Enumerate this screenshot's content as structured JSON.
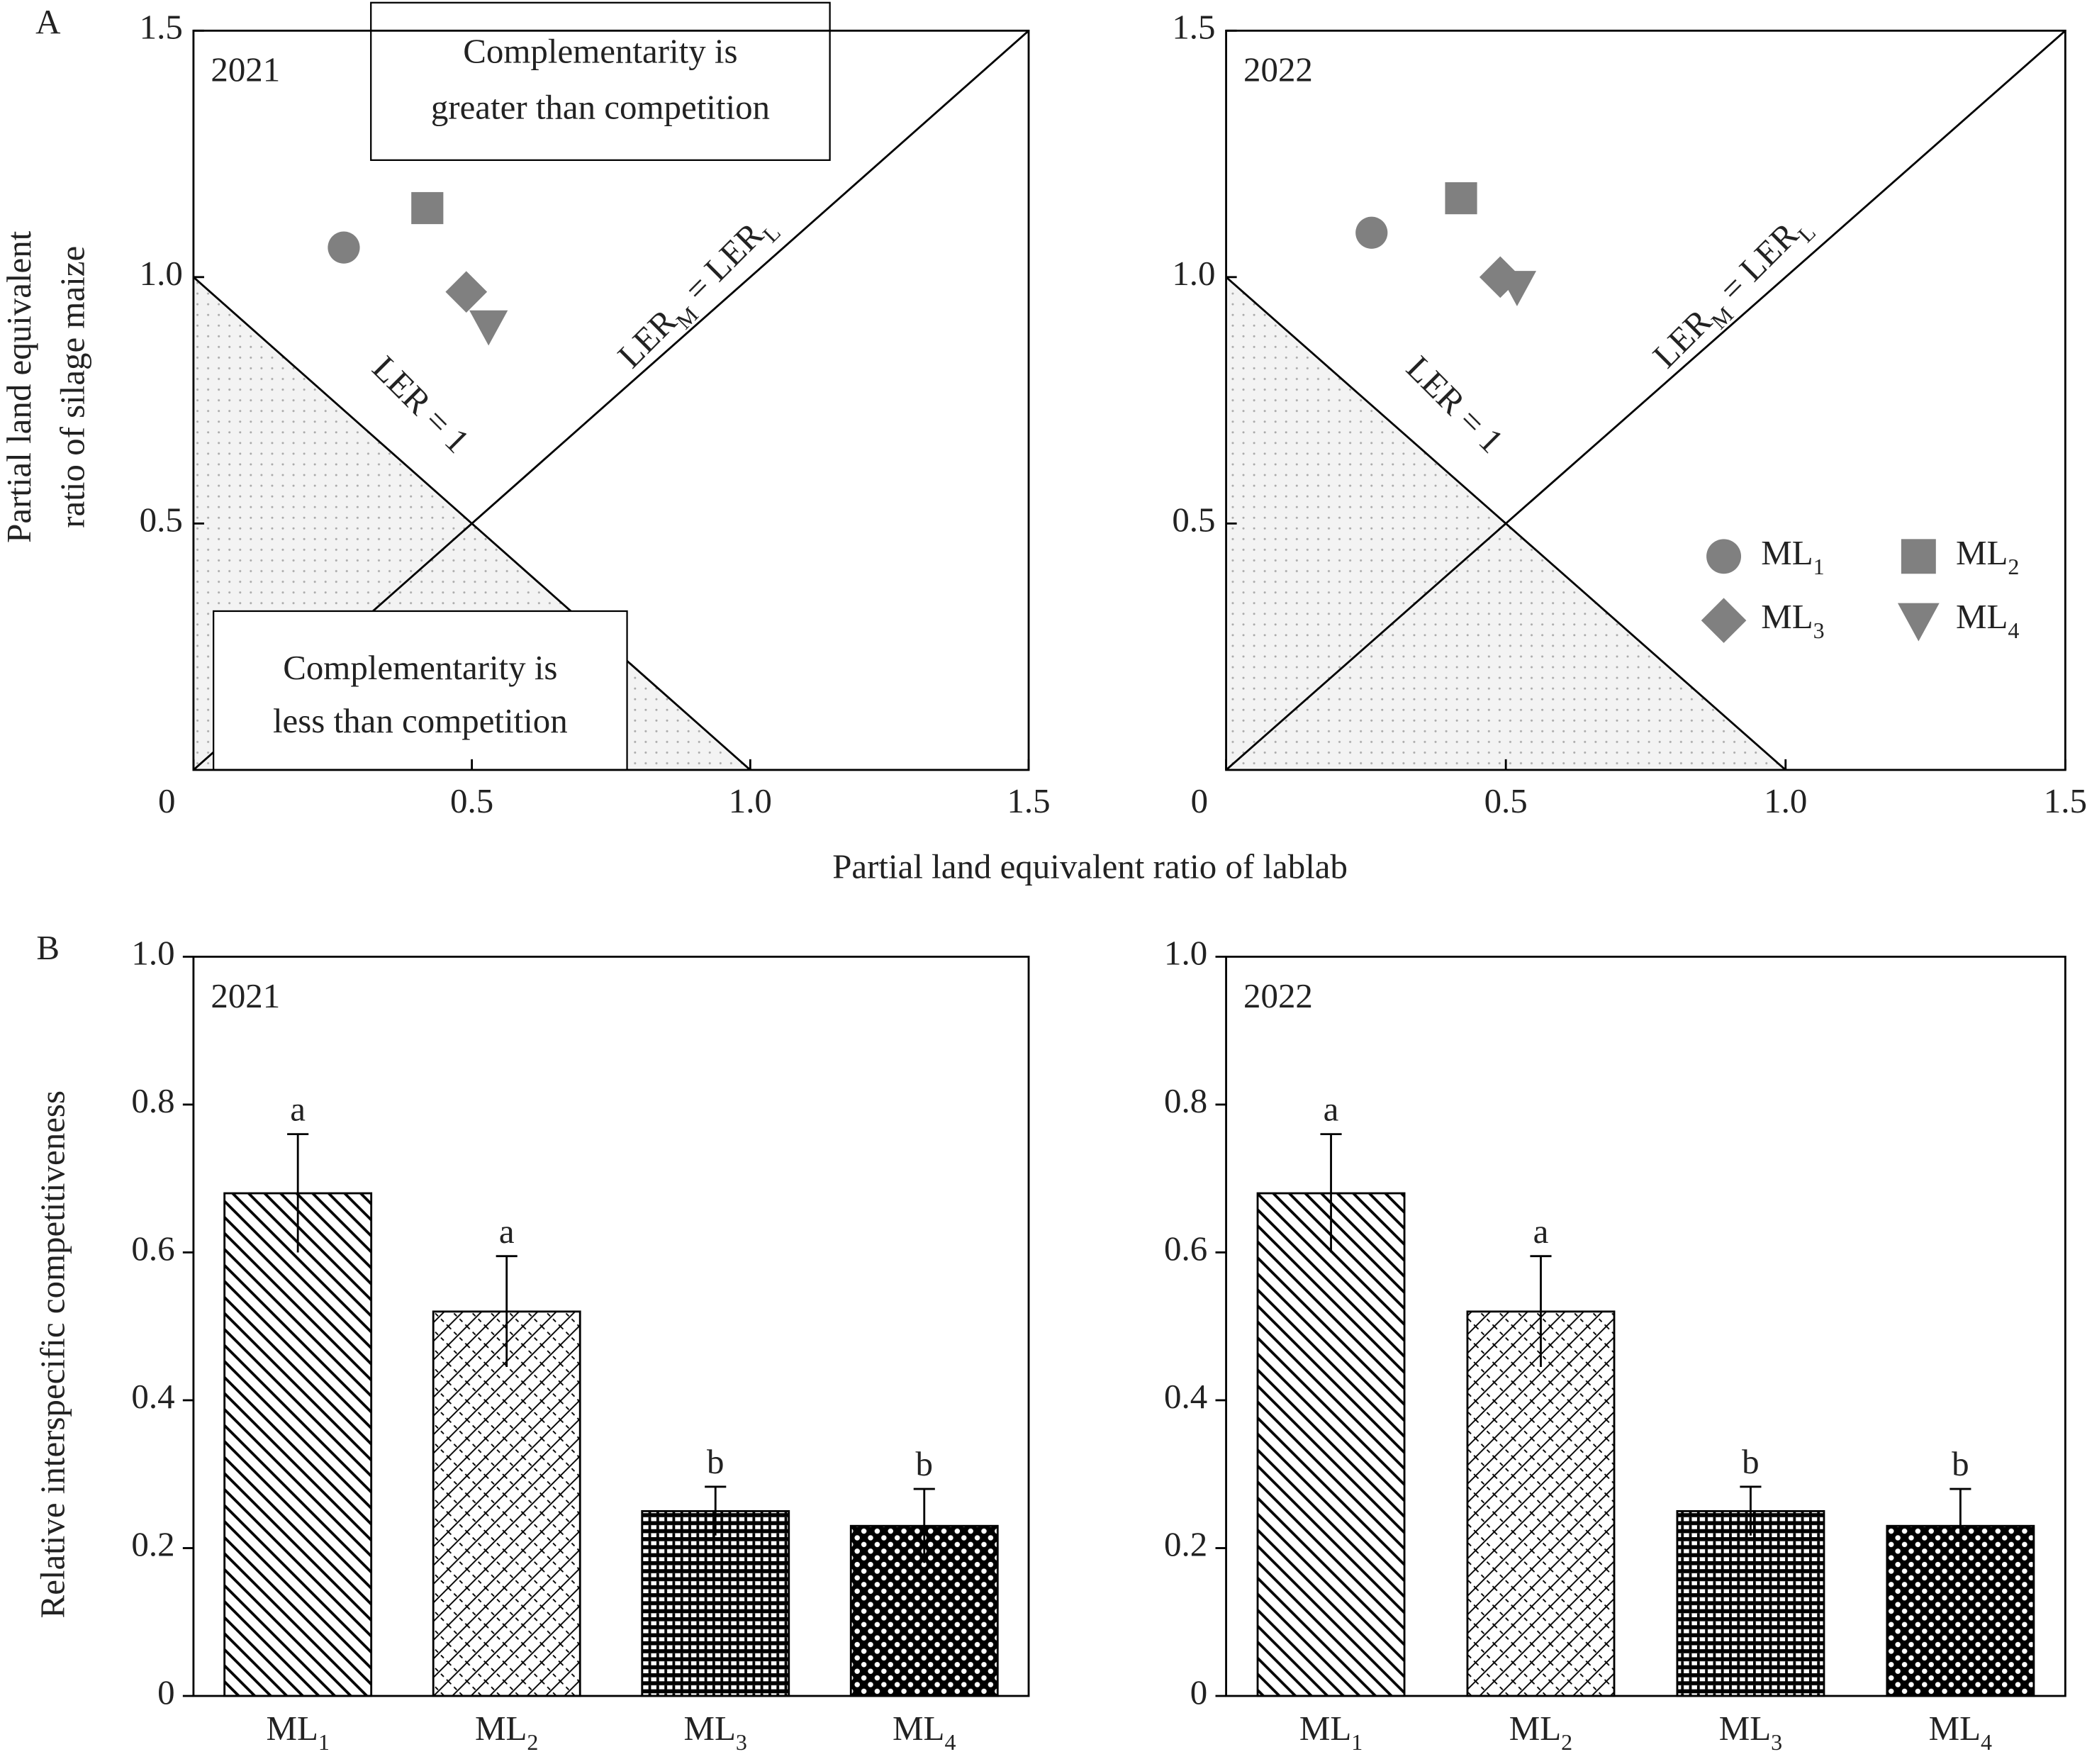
{
  "chart_data": [
    {
      "type": "scatter",
      "panel_label": "A",
      "title": "2021",
      "xlabel": "Partial land equivalent ratio of lablab",
      "ylabel": [
        "Partial land equivalent",
        "ratio of silage maize"
      ],
      "xlim": [
        0,
        1.5
      ],
      "ylim": [
        0,
        1.5
      ],
      "xticks": [
        0,
        0.5,
        {
          "value": 1,
          "label": "1.0"
        },
        1.5
      ],
      "yticks": [
        0.5,
        {
          "value": 1,
          "label": "1.0"
        },
        1.5
      ],
      "series": [
        {
          "name": "ML1",
          "color": "#808080",
          "marker": "circle",
          "x": [
            0.27
          ],
          "y": [
            1.06
          ]
        },
        {
          "name": "ML2",
          "color": "#808080",
          "marker": "square",
          "x": [
            0.42
          ],
          "y": [
            1.14
          ]
        },
        {
          "name": "ML3",
          "color": "#808080",
          "marker": "diamond",
          "x": [
            0.49
          ],
          "y": [
            0.97
          ]
        },
        {
          "name": "ML4",
          "color": "#808080",
          "marker": "triangle-down",
          "x": [
            0.53
          ],
          "y": [
            0.9
          ]
        }
      ],
      "annotations": {
        "upper": [
          "Complementarity is",
          "greater than competition"
        ],
        "lower": [
          "Complementarity is",
          "less than competition"
        ],
        "ler_line": "LER = 1",
        "diagonal": [
          "LER",
          "M",
          " = LER",
          "L"
        ]
      }
    },
    {
      "type": "scatter",
      "title": "2022",
      "legend": "lower right",
      "xlim": [
        0,
        1.5
      ],
      "ylim": [
        0,
        1.5
      ],
      "xticks": [
        0,
        0.5,
        {
          "value": 1,
          "label": "1.0"
        },
        1.5
      ],
      "yticks": [
        0.5,
        {
          "value": 1,
          "label": "1.0"
        },
        1.5
      ],
      "series": [
        {
          "name": "ML1",
          "color": "#808080",
          "marker": "circle",
          "x": [
            0.26
          ],
          "y": [
            1.09
          ]
        },
        {
          "name": "ML2",
          "color": "#808080",
          "marker": "square",
          "x": [
            0.42
          ],
          "y": [
            1.16
          ]
        },
        {
          "name": "ML3",
          "color": "#808080",
          "marker": "diamond",
          "x": [
            0.49
          ],
          "y": [
            1.0
          ]
        },
        {
          "name": "ML4",
          "color": "#808080",
          "marker": "triangle-down",
          "x": [
            0.52
          ],
          "y": [
            0.98
          ]
        }
      ],
      "annotations": {
        "ler_line": "LER = 1",
        "diagonal": [
          "LER",
          "M",
          " = LER",
          "L"
        ]
      }
    },
    {
      "type": "bar",
      "panel_label": "B",
      "title": "2021",
      "ylabel": "Relative interspecific competitiveness",
      "categories": [
        "ML1",
        "ML2",
        "ML3",
        "ML4"
      ],
      "values": [
        0.68,
        0.52,
        0.25,
        0.23
      ],
      "errors": [
        0.08,
        0.075,
        0.033,
        0.05
      ],
      "letters": [
        "a",
        "a",
        "b",
        "b"
      ],
      "patterns": [
        "diagonal",
        "lattice",
        "dense",
        "checker"
      ],
      "ylim": [
        0,
        1
      ],
      "yticks": [
        0,
        0.2,
        0.4,
        0.6,
        0.8,
        {
          "value": 1,
          "label": "1.0"
        }
      ]
    },
    {
      "type": "bar",
      "title": "2022",
      "categories": [
        "ML1",
        "ML2",
        "ML3",
        "ML4"
      ],
      "values": [
        0.68,
        0.52,
        0.25,
        0.23
      ],
      "errors": [
        0.08,
        0.075,
        0.033,
        0.05
      ],
      "letters": [
        "a",
        "a",
        "b",
        "b"
      ],
      "patterns": [
        "diagonal",
        "lattice",
        "dense",
        "checker"
      ],
      "ylim": [
        0,
        1
      ],
      "yticks": [
        0,
        0.2,
        0.4,
        0.6,
        0.8,
        {
          "value": 1,
          "label": "1.0"
        }
      ]
    }
  ]
}
